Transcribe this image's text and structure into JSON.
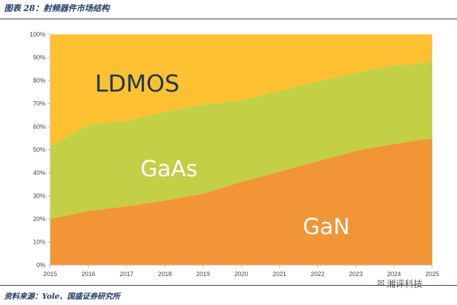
{
  "header": {
    "caption": "图表 28：射频器件市场结构"
  },
  "footer": {
    "source": "资料来源：Yole、国盛证券研究所"
  },
  "watermark": {
    "text": "湘评科技",
    "icon": "wechat-icon"
  },
  "colors": {
    "ldmos": "#fcc030",
    "gaas": "#c3d046",
    "gan": "#f29537",
    "axis": "#bfbfbf",
    "label_dark": "#1d3857",
    "label_light": "#ffffff"
  },
  "chart_data": {
    "type": "area",
    "stacked": true,
    "percent": true,
    "x": [
      "2015",
      "2016",
      "2017",
      "2018",
      "2019",
      "2020",
      "2021",
      "2022",
      "2023",
      "2024",
      "2025"
    ],
    "ylim": [
      0,
      100
    ],
    "yticks": [
      "0%",
      "10%",
      "20%",
      "30%",
      "40%",
      "50%",
      "60%",
      "70%",
      "80%",
      "90%",
      "100%"
    ],
    "series": [
      {
        "name": "GaN",
        "values": [
          20,
          23.5,
          25.5,
          28,
          31,
          36,
          40.5,
          45,
          49.5,
          52.5,
          55
        ]
      },
      {
        "name": "GaAs",
        "values": [
          31.5,
          37.5,
          37,
          38.5,
          38.5,
          35.5,
          35,
          34.5,
          34,
          34,
          33
        ]
      },
      {
        "name": "LDMOS",
        "values": [
          48.5,
          39,
          37.5,
          33.5,
          30.5,
          28.5,
          24.5,
          20.5,
          16.5,
          13.5,
          12
        ]
      }
    ],
    "title": "",
    "xlabel": "",
    "ylabel": ""
  }
}
